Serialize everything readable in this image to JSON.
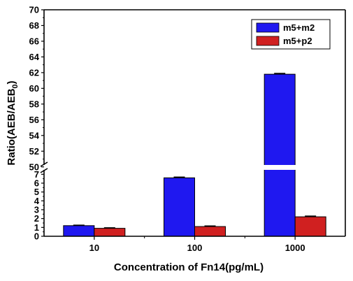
{
  "chart_data": {
    "type": "bar",
    "title": "",
    "xlabel": "Concentration of Fn14(pg/mL)",
    "ylabel_main": "Ratio(AEB/AEB",
    "ylabel_sub": "0",
    "ylabel_close": ")",
    "categories": [
      "10",
      "100",
      "1000"
    ],
    "series": [
      {
        "name": "m5+m2",
        "color": "#1f18f0",
        "values": [
          1.2,
          6.6,
          61.8
        ],
        "errors": [
          0.05,
          0.08,
          0.1
        ]
      },
      {
        "name": "m5+p2",
        "color": "#d02020",
        "values": [
          0.9,
          1.1,
          2.2
        ],
        "errors": [
          0.05,
          0.06,
          0.08
        ]
      }
    ],
    "y_axis_break": true,
    "y_lower_range": [
      0,
      7.5
    ],
    "y_upper_range": [
      49,
      70
    ],
    "y_lower_ticks": [
      "0",
      "1",
      "2",
      "3",
      "4",
      "5",
      "6",
      "7"
    ],
    "y_upper_ticks": [
      "50",
      "52",
      "54",
      "56",
      "58",
      "60",
      "62",
      "64",
      "66",
      "68",
      "70"
    ],
    "legend_placement": "top-right",
    "grid": false
  }
}
